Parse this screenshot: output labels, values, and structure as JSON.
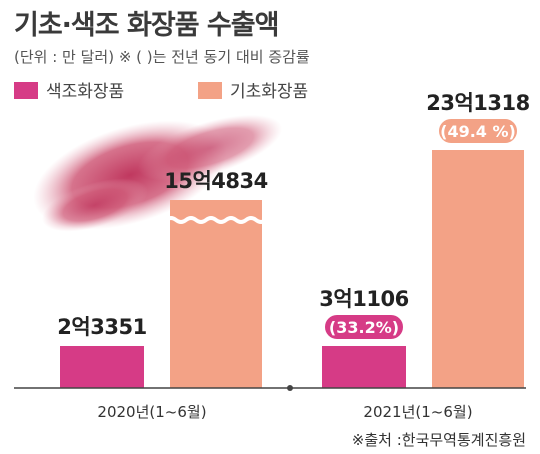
{
  "header": {
    "title": "기초·색조 화장품 수출액",
    "subtitle": "(단위 : 만 달러)  ※ (  )는 전년 동기 대비 증감률"
  },
  "legend": [
    {
      "label": "색조화장품",
      "color": "#d63b86"
    },
    {
      "label": "기초화장품",
      "color": "#f3a286"
    }
  ],
  "source": "※출처 :한국무역통계진흥원",
  "chart_data": {
    "type": "bar",
    "categories": [
      "2020년(1~6월)",
      "2021년(1~6월)"
    ],
    "series": [
      {
        "name": "색조화장품",
        "color": "#d63b86",
        "values": [
          23351,
          31106
        ],
        "labels": [
          "2억3351",
          "3억1106"
        ],
        "changes": [
          "",
          "(33.2%)"
        ]
      },
      {
        "name": "기초화장품",
        "color": "#f3a286",
        "values": [
          154834,
          231318
        ],
        "labels": [
          "15억4834",
          "23억1318"
        ],
        "changes": [
          "",
          "(49.4 %)"
        ]
      }
    ],
    "axis_break": "on 2020 기초화장품 bar",
    "grid": false
  }
}
